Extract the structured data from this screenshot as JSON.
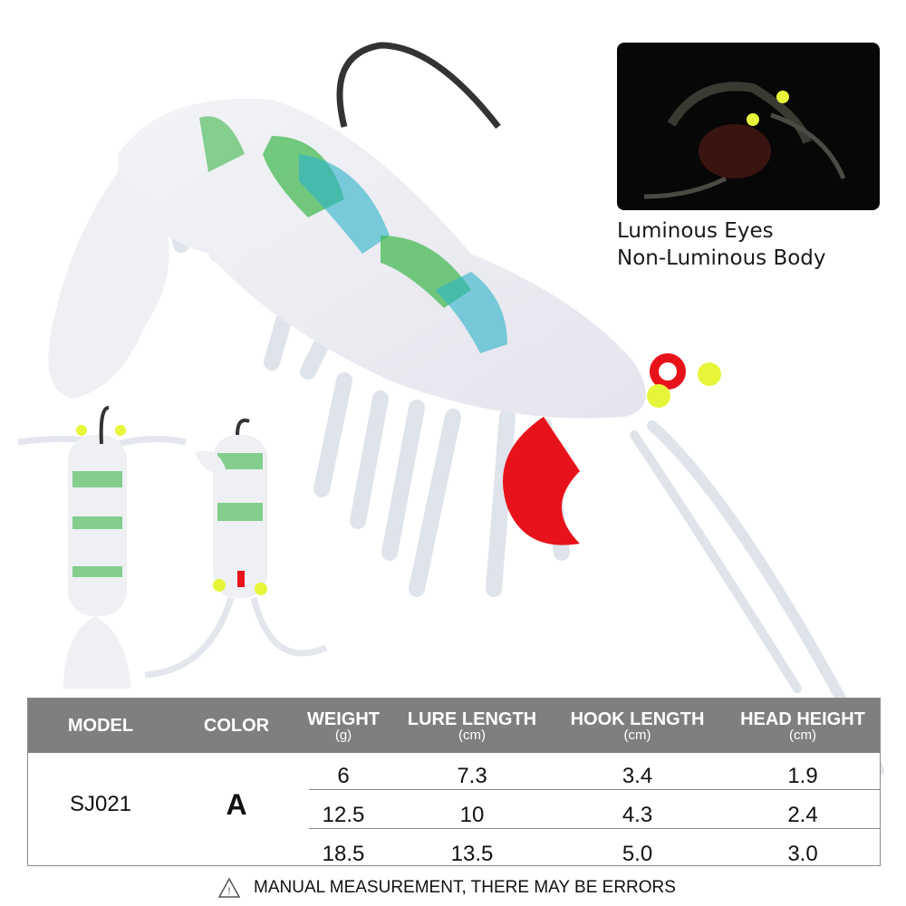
{
  "inset": {
    "caption_line1": "Luminous Eyes",
    "caption_line2": "Non-Luminous Body"
  },
  "table": {
    "headers": [
      {
        "label": "MODEL",
        "unit": ""
      },
      {
        "label": "COLOR",
        "unit": ""
      },
      {
        "label": "WEIGHT",
        "unit": "(g)"
      },
      {
        "label": "LURE LENGTH",
        "unit": "(cm)"
      },
      {
        "label": "HOOK LENGTH",
        "unit": "(cm)"
      },
      {
        "label": "HEAD HEIGHT",
        "unit": "(cm)"
      }
    ],
    "model": "SJ021",
    "color": "A",
    "rows": [
      [
        "6",
        "7.3",
        "3.4",
        "1.9"
      ],
      [
        "12.5",
        "10",
        "4.3",
        "2.4"
      ],
      [
        "18.5",
        "13.5",
        "5.0",
        "3.0"
      ]
    ]
  },
  "note": {
    "icon": "warning-triangle-icon",
    "text": "MANUAL MEASUREMENT, THERE MAY BE ERRORS"
  },
  "colors": {
    "header_bg": "#7f7f7f",
    "eye_glow": "#e6f53a",
    "head_red": "#e8121a",
    "body_green": "#3cb84a",
    "body_blue": "#2ab3c9"
  }
}
